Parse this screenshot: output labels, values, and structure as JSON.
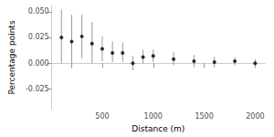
{
  "chart_data": {
    "type": "scatter",
    "x_label": "Distance (m)",
    "y_label": "Percentage points",
    "x": [
      100,
      200,
      300,
      400,
      500,
      600,
      700,
      800,
      900,
      1000,
      1200,
      1400,
      1600,
      1800,
      2000
    ],
    "values": [
      0.025,
      0.021,
      0.026,
      0.019,
      0.014,
      0.01,
      0.01,
      0.0,
      0.006,
      0.007,
      0.004,
      0.002,
      0.001,
      0.002,
      0.0
    ],
    "error_low": [
      0.0,
      -0.005,
      0.005,
      0.0,
      0.002,
      0.001,
      0.001,
      -0.007,
      0.0,
      0.001,
      -0.002,
      -0.004,
      -0.004,
      -0.002,
      -0.004
    ],
    "error_high": [
      0.052,
      0.047,
      0.047,
      0.04,
      0.026,
      0.021,
      0.02,
      0.007,
      0.013,
      0.013,
      0.011,
      0.008,
      0.006,
      0.006,
      0.004
    ],
    "color": "#000000",
    "error_color": "#999999",
    "xlim": [
      5,
      2095
    ],
    "xticks": [
      500,
      1000,
      1500,
      2000
    ],
    "ylim": [
      -0.045,
      0.056
    ],
    "yticks": [
      {
        "value": -0.025,
        "label": "-0.025"
      },
      {
        "value": 0,
        "label": "0.000"
      },
      {
        "value": 0.025,
        "label": "0.025"
      },
      {
        "value": 0.05,
        "label": "0.050"
      }
    ],
    "grid": false
  }
}
